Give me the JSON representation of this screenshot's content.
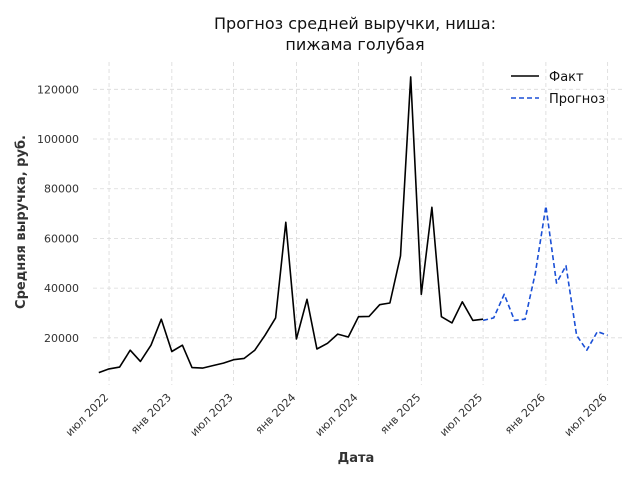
{
  "chart_data": {
    "type": "line",
    "title_line1": "Прогноз средней выручки, ниша:",
    "title_line2": "пижама голубая",
    "xlabel": "Дата",
    "ylabel": "Средняя выручка, руб.",
    "ylim": [
      1000,
      131000
    ],
    "yticks": [
      20000,
      40000,
      60000,
      80000,
      100000,
      120000
    ],
    "x_tick_labels": [
      "июл 2022",
      "янв 2023",
      "июл 2023",
      "янв 2024",
      "июл 2024",
      "янв 2025",
      "июл 2025",
      "янв 2026",
      "июл 2026"
    ],
    "grid": true,
    "legend_position": "top-right",
    "series": [
      {
        "name": "Факт",
        "color": "#000000",
        "style": "solid",
        "x": [
          "2022-06",
          "2022-07",
          "2022-08",
          "2022-09",
          "2022-10",
          "2022-11",
          "2022-12",
          "2023-01",
          "2023-02",
          "2023-03",
          "2023-04",
          "2023-05",
          "2023-06",
          "2023-07",
          "2023-08",
          "2023-09",
          "2023-10",
          "2023-11",
          "2023-12",
          "2024-01",
          "2024-02",
          "2024-03",
          "2024-04",
          "2024-05",
          "2024-06",
          "2024-07",
          "2024-08",
          "2024-09",
          "2024-10",
          "2024-11",
          "2024-12",
          "2025-01",
          "2025-02",
          "2025-03",
          "2025-04",
          "2025-05",
          "2025-06",
          "2025-07"
        ],
        "values": [
          6000,
          7500,
          8200,
          15000,
          10500,
          17000,
          27500,
          14500,
          17000,
          8000,
          7800,
          8800,
          9800,
          11200,
          11700,
          15000,
          21000,
          28000,
          66500,
          19500,
          35500,
          15500,
          17800,
          21500,
          20300,
          28500,
          28600,
          33300,
          34000,
          53000,
          125000,
          37500,
          72500,
          28500,
          26000,
          34500,
          27000,
          27500
        ]
      },
      {
        "name": "Прогноз",
        "color": "#1a4fd6",
        "style": "dashed",
        "x": [
          "2025-07",
          "2025-08",
          "2025-09",
          "2025-10",
          "2025-11",
          "2025-12",
          "2026-01",
          "2026-02",
          "2026-03",
          "2026-04",
          "2026-05",
          "2026-06",
          "2026-07"
        ],
        "values": [
          27000,
          28000,
          37500,
          27000,
          27500,
          46000,
          73000,
          42000,
          49000,
          21000,
          15000,
          22500,
          21000
        ]
      }
    ]
  }
}
